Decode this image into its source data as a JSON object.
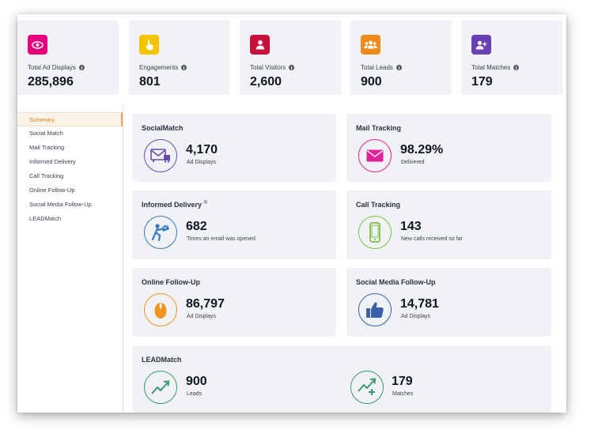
{
  "stats": [
    {
      "label": "Total Ad Displays",
      "value": "285,896",
      "icon": "eye-icon",
      "color": "#e4007c"
    },
    {
      "label": "Engagements",
      "value": "801",
      "icon": "pointer-hand-icon",
      "color": "#f5c400"
    },
    {
      "label": "Total Visitors",
      "value": "2,600",
      "icon": "user-icon",
      "color": "#c8103e"
    },
    {
      "label": "Total Leads",
      "value": "900",
      "icon": "group-icon",
      "color": "#f08a1d"
    },
    {
      "label": "Total Matches",
      "value": "179",
      "icon": "user-plus-icon",
      "color": "#6a3fb4"
    }
  ],
  "sidebar": {
    "items": [
      {
        "label": "Summary",
        "active": true
      },
      {
        "label": "Social Match"
      },
      {
        "label": "Mail Tracking"
      },
      {
        "label": "Informed Delivery"
      },
      {
        "label": "Call Tracking"
      },
      {
        "label": "Online Follow-Up"
      },
      {
        "label": "Social Media Follow-Up"
      },
      {
        "label": "LEADMatch"
      }
    ]
  },
  "cards": {
    "socialmatch": {
      "title": "SocialMatch",
      "value": "4,170",
      "sub": "Ad Displays",
      "icon": "mailer-icon",
      "color": "#6b4bb0"
    },
    "mail_tracking": {
      "title": "Mail Tracking",
      "value": "98.29%",
      "sub": "Delivered",
      "icon": "envelope-icon",
      "color": "#e0229a"
    },
    "informed_delivery": {
      "title": "Informed Delivery",
      "title_mark": "®",
      "value": "682",
      "sub": "Times an email was opened",
      "icon": "mail-carrier-icon",
      "color": "#3a78c2"
    },
    "call_tracking": {
      "title": "Call Tracking",
      "value": "143",
      "sub": "New calls received so far",
      "icon": "phone-icon",
      "color": "#7cc242"
    },
    "online_followup": {
      "title": "Online Follow-Up",
      "value": "86,797",
      "sub": "Ad Displays",
      "icon": "mouse-icon",
      "color": "#f0951e"
    },
    "social_media_followup": {
      "title": "Social Media Follow-Up",
      "value": "14,781",
      "sub": "Ad Displays",
      "icon": "thumbs-up-icon",
      "color": "#3b5fa8"
    },
    "leadmatch": {
      "title": "LEADMatch",
      "leads": {
        "value": "900",
        "sub": "Leads",
        "icon": "trend-up-icon",
        "color": "#3a9a6e"
      },
      "matches": {
        "value": "179",
        "sub": "Matches",
        "icon": "trend-up-plus-icon",
        "color": "#3a9a6e"
      }
    }
  }
}
